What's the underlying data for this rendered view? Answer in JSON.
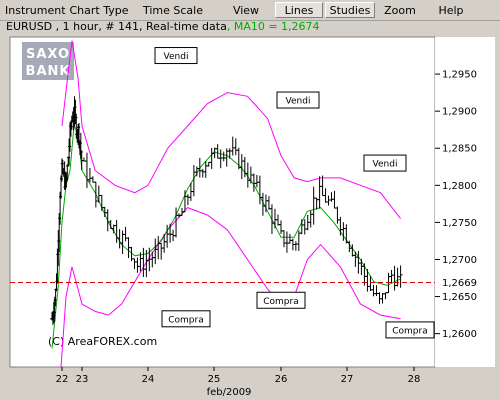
{
  "menu": {
    "items": [
      "Instrument",
      "Chart Type",
      "Time Scale",
      "View",
      "Lines",
      "Studies",
      "Zoom",
      "Help"
    ],
    "active": [
      "Lines",
      "Studies"
    ]
  },
  "info": {
    "text": "EURUSD , 1 hour, # 141, Real-time data",
    "ma_text": ", MA10 = 1,2674"
  },
  "logo": {
    "line1": "SAXO",
    "line2": "BANK"
  },
  "watermark": "(C) AreaFOREX.com",
  "current_price_label": "1,2669",
  "colors": {
    "ma": "#00aa00",
    "bands": "#ff00ff",
    "price_bar": "#000000",
    "current_line": "#dd0000",
    "logo_bg": "#a6aab8"
  },
  "chart_data": {
    "type": "bar",
    "title": "",
    "instrument": "EURUSD",
    "timeframe": "1 hour",
    "bars_count": 141,
    "xlabel": "feb/2009",
    "ylabel": "",
    "ylim": [
      1.2555,
      1.3
    ],
    "y_ticks": [
      "1,2600",
      "1,2650",
      "1,2700",
      "1,2750",
      "1,2800",
      "1,2850",
      "1,2900",
      "1,2950"
    ],
    "y_tick_values": [
      1.26,
      1.265,
      1.27,
      1.275,
      1.28,
      1.285,
      1.29,
      1.295
    ],
    "x_ticks": [
      "22",
      "23",
      "24",
      "25",
      "26",
      "27",
      "28"
    ],
    "current_price": 1.2669,
    "ma10_value": 1.2674,
    "annotations": [
      {
        "text": "Vendi",
        "kind": "sell",
        "price": 1.2975
      },
      {
        "text": "Vendi",
        "kind": "sell",
        "price": 1.2915
      },
      {
        "text": "Vendi",
        "kind": "sell",
        "price": 1.283
      },
      {
        "text": "Compra",
        "kind": "buy",
        "price": 1.262
      },
      {
        "text": "Compra",
        "kind": "buy",
        "price": 1.2645
      },
      {
        "text": "Compra",
        "kind": "buy",
        "price": 1.2605
      }
    ],
    "price_path": [
      [
        21.5,
        1.262
      ],
      [
        21.7,
        1.266
      ],
      [
        21.9,
        1.279
      ],
      [
        22.0,
        1.282
      ],
      [
        22.2,
        1.28
      ],
      [
        22.4,
        1.287
      ],
      [
        22.5,
        1.289
      ],
      [
        22.6,
        1.29
      ],
      [
        22.7,
        1.288
      ],
      [
        22.85,
        1.287
      ],
      [
        23.0,
        1.283
      ],
      [
        23.15,
        1.28
      ],
      [
        23.3,
        1.277
      ],
      [
        23.5,
        1.274
      ],
      [
        23.7,
        1.272
      ],
      [
        23.85,
        1.269
      ],
      [
        24.0,
        1.27
      ],
      [
        24.15,
        1.271
      ],
      [
        24.3,
        1.273
      ],
      [
        24.5,
        1.276
      ],
      [
        24.7,
        1.281
      ],
      [
        24.85,
        1.283
      ],
      [
        25.0,
        1.284
      ],
      [
        25.2,
        1.285
      ],
      [
        25.4,
        1.283
      ],
      [
        25.6,
        1.28
      ],
      [
        25.8,
        1.277
      ],
      [
        26.0,
        1.273
      ],
      [
        26.2,
        1.272
      ],
      [
        26.4,
        1.276
      ],
      [
        26.55,
        1.279
      ],
      [
        26.7,
        1.278
      ],
      [
        26.85,
        1.276
      ],
      [
        27.0,
        1.273
      ],
      [
        27.2,
        1.269
      ],
      [
        27.35,
        1.266
      ],
      [
        27.5,
        1.264
      ],
      [
        27.65,
        1.268
      ],
      [
        27.8,
        1.2669
      ]
    ],
    "series": [
      {
        "name": "MA10",
        "values": [
          [
            21.5,
            1.258
          ],
          [
            21.8,
            1.266
          ],
          [
            22.0,
            1.275
          ],
          [
            22.2,
            1.28
          ],
          [
            22.4,
            1.282
          ],
          [
            22.6,
            1.288
          ],
          [
            22.8,
            1.287
          ],
          [
            23.0,
            1.282
          ],
          [
            23.2,
            1.279
          ],
          [
            23.4,
            1.275
          ],
          [
            23.6,
            1.272
          ],
          [
            23.8,
            1.2705
          ],
          [
            24.0,
            1.2708
          ],
          [
            24.2,
            1.2725
          ],
          [
            24.4,
            1.2755
          ],
          [
            24.6,
            1.2795
          ],
          [
            24.8,
            1.2825
          ],
          [
            25.0,
            1.2845
          ],
          [
            25.2,
            1.284
          ],
          [
            25.4,
            1.2825
          ],
          [
            25.6,
            1.28
          ],
          [
            25.8,
            1.2765
          ],
          [
            26.0,
            1.273
          ],
          [
            26.2,
            1.273
          ],
          [
            26.4,
            1.2765
          ],
          [
            26.6,
            1.277
          ],
          [
            26.8,
            1.275
          ],
          [
            27.0,
            1.2725
          ],
          [
            27.2,
            1.27
          ],
          [
            27.4,
            1.267
          ],
          [
            27.6,
            1.2665
          ],
          [
            27.8,
            1.2674
          ]
        ]
      },
      {
        "name": "Bollinger upper",
        "values": [
          [
            22.0,
            1.288
          ],
          [
            22.3,
            1.295
          ],
          [
            22.5,
            1.2995
          ],
          [
            22.8,
            1.2945
          ],
          [
            23.0,
            1.288
          ],
          [
            23.2,
            1.282
          ],
          [
            23.5,
            1.28
          ],
          [
            23.8,
            1.279
          ],
          [
            24.0,
            1.28
          ],
          [
            24.3,
            1.285
          ],
          [
            24.6,
            1.288
          ],
          [
            24.9,
            1.291
          ],
          [
            25.2,
            1.2925
          ],
          [
            25.5,
            1.292
          ],
          [
            25.8,
            1.289
          ],
          [
            26.0,
            1.284
          ],
          [
            26.2,
            1.281
          ],
          [
            26.4,
            1.2805
          ],
          [
            26.6,
            1.281
          ],
          [
            26.9,
            1.281
          ],
          [
            27.2,
            1.28
          ],
          [
            27.5,
            1.279
          ],
          [
            27.8,
            1.2755
          ]
        ]
      },
      {
        "name": "Bollinger lower",
        "values": [
          [
            21.95,
            1.2555
          ],
          [
            22.2,
            1.265
          ],
          [
            22.5,
            1.269
          ],
          [
            22.8,
            1.266
          ],
          [
            23.0,
            1.264
          ],
          [
            23.2,
            1.263
          ],
          [
            23.4,
            1.2625
          ],
          [
            23.6,
            1.264
          ],
          [
            23.8,
            1.267
          ],
          [
            24.0,
            1.27
          ],
          [
            24.3,
            1.274
          ],
          [
            24.6,
            1.277
          ],
          [
            24.9,
            1.276
          ],
          [
            25.2,
            1.274
          ],
          [
            25.5,
            1.27
          ],
          [
            25.8,
            1.266
          ],
          [
            26.0,
            1.264
          ],
          [
            26.2,
            1.265
          ],
          [
            26.4,
            1.27
          ],
          [
            26.6,
            1.272
          ],
          [
            26.9,
            1.269
          ],
          [
            27.2,
            1.264
          ],
          [
            27.5,
            1.2625
          ],
          [
            27.8,
            1.262
          ]
        ]
      }
    ]
  }
}
